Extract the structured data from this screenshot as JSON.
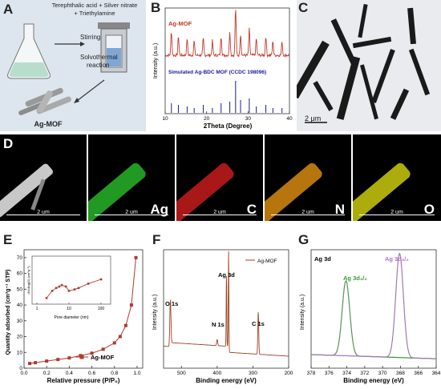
{
  "panelA": {
    "label": "A",
    "reagents_line1": "Terephthalic acid + Silver nitrate",
    "reagents_line2": "+ Triethylamine",
    "step1": "Stirring",
    "step2_line1": "Solvothermal",
    "step2_line2": "reaction",
    "product": "Ag-MOF"
  },
  "panelB": {
    "label": "B",
    "ylabel": "Intensity (a.u.)",
    "xlabel": "2Theta (Degree)",
    "series_top": "Ag-MOF",
    "series_bottom": "Simulated Ag-BDC MOF (CCDC 198096)",
    "colors": {
      "exp": "#c0392b",
      "sim": "#1a1aa0"
    },
    "xticks": [
      "10",
      "20",
      "30",
      "40"
    ]
  },
  "panelC": {
    "label": "C",
    "scale": "2 μm"
  },
  "panelD": {
    "label": "D",
    "tiles": [
      {
        "element": "",
        "scale": "2 um",
        "color": "#bfbfbf"
      },
      {
        "element": "Ag",
        "scale": "2 um",
        "color": "#2ecc2e"
      },
      {
        "element": "C",
        "scale": "2 um",
        "color": "#e02020"
      },
      {
        "element": "N",
        "scale": "2 um",
        "color": "#f39c12"
      },
      {
        "element": "O",
        "scale": "2 um",
        "color": "#e5e510"
      }
    ]
  },
  "panelE": {
    "label": "E",
    "ylabel": "Quantity adsorbed (cm³g⁻¹ STP)",
    "xlabel": "Relative pressure (P/P₀)",
    "legend": "Ag-MOF",
    "xticks": [
      "0.0",
      "0.2",
      "0.4",
      "0.6",
      "0.8",
      "1.0"
    ],
    "yticks": [
      "0",
      "10",
      "20",
      "30",
      "40",
      "50",
      "60",
      "70"
    ],
    "inset_xlabel": "Pore diameter (nm)",
    "inset_ylabel": "dV/dlog(D) (cm³g⁻¹)",
    "inset_xticks": [
      "1",
      "10",
      "100"
    ],
    "color": "#b03a2e"
  },
  "panelF": {
    "label": "F",
    "ylabel": "Intensity (a.u.)",
    "xlabel": "Binding energy (eV)",
    "legend": "Ag-MOF",
    "peaks": [
      "O 1s",
      "N 1s",
      "Ag 3d",
      "C 1s"
    ],
    "xticks": [
      "500",
      "400",
      "300",
      "200"
    ],
    "color": "#a04020"
  },
  "panelG": {
    "label": "G",
    "title": "Ag 3d",
    "peak1": "Ag 3d₃/₂",
    "peak2": "Ag 3d₅/₂",
    "ylabel": "Intensity (a.u.)",
    "xlabel": "Binding energy (eV)",
    "xticks": [
      "378",
      "376",
      "374",
      "372",
      "370",
      "368",
      "366",
      "364"
    ],
    "colors": {
      "peak1": "#3a9a3a",
      "peak2": "#b070d0"
    }
  },
  "chart_data": [
    {
      "type": "line",
      "panel": "B",
      "xlabel": "2Theta (Degree)",
      "ylabel": "Intensity (a.u.)",
      "xlim": [
        10,
        40
      ],
      "series": [
        {
          "name": "Ag-MOF",
          "x": [
            11.5,
            13.2,
            15.3,
            17.0,
            19.2,
            21.4,
            23.5,
            25.6,
            27.0,
            28.2,
            30.3,
            32.0,
            34.3,
            36.0,
            38.2
          ],
          "y": [
            0.5,
            0.4,
            0.35,
            0.3,
            0.35,
            0.3,
            0.4,
            0.5,
            1.0,
            0.45,
            0.55,
            0.35,
            0.4,
            0.3,
            0.3
          ]
        },
        {
          "name": "Simulated Ag-BDC MOF (CCDC 198096)",
          "x": [
            11.5,
            13.2,
            15.3,
            17.0,
            19.2,
            21.4,
            23.5,
            25.6,
            27.0,
            28.2,
            30.3,
            32.0,
            34.3,
            36.0,
            38.2
          ],
          "y": [
            0.3,
            0.25,
            0.2,
            0.15,
            0.25,
            0.15,
            0.3,
            0.35,
            1.0,
            0.4,
            0.45,
            0.2,
            0.25,
            0.15,
            0.15
          ]
        }
      ]
    },
    {
      "type": "scatter",
      "panel": "E",
      "xlabel": "Relative pressure (P/P₀)",
      "ylabel": "Quantity adsorbed (cm³g⁻¹ STP)",
      "xlim": [
        0,
        1.05
      ],
      "ylim": [
        0,
        75
      ],
      "series": [
        {
          "name": "Ag-MOF",
          "x": [
            0.05,
            0.1,
            0.2,
            0.3,
            0.4,
            0.5,
            0.6,
            0.7,
            0.8,
            0.85,
            0.9,
            0.95,
            0.99
          ],
          "y": [
            3,
            3.5,
            4.5,
            5.5,
            6.5,
            8,
            9.5,
            12,
            16,
            20,
            27,
            40,
            70
          ]
        }
      ]
    },
    {
      "type": "line",
      "panel": "E-inset",
      "xlabel": "Pore diameter (nm)",
      "ylabel": "dV/dlog(D) (cm³g⁻¹)",
      "series": [
        {
          "name": "",
          "x": [
            2,
            3,
            4,
            5,
            6,
            8,
            10,
            15,
            20,
            40,
            100
          ],
          "y": [
            0.1,
            0.35,
            0.45,
            0.5,
            0.55,
            0.5,
            0.35,
            0.4,
            0.45,
            0.6,
            0.75
          ]
        }
      ]
    },
    {
      "type": "line",
      "panel": "F",
      "xlabel": "Binding energy (eV)",
      "ylabel": "Intensity (a.u.)",
      "xlim": [
        550,
        200
      ],
      "series": [
        {
          "name": "Ag-MOF",
          "x": [
            550,
            531,
            500,
            450,
            400,
            374,
            368,
            340,
            285,
            250,
            200
          ],
          "y": [
            0.12,
            0.5,
            0.1,
            0.08,
            0.18,
            0.7,
            0.85,
            0.05,
            0.45,
            0.03,
            0.02
          ]
        }
      ]
    },
    {
      "type": "line",
      "panel": "G",
      "xlabel": "Binding energy (eV)",
      "ylabel": "Intensity (a.u.)",
      "xlim": [
        378,
        364
      ],
      "series": [
        {
          "name": "Ag 3d₃/₂",
          "x": [
            374.1
          ],
          "y": [
            0.72
          ]
        },
        {
          "name": "Ag 3d₅/₂",
          "x": [
            368.1
          ],
          "y": [
            1.0
          ]
        }
      ]
    }
  ]
}
